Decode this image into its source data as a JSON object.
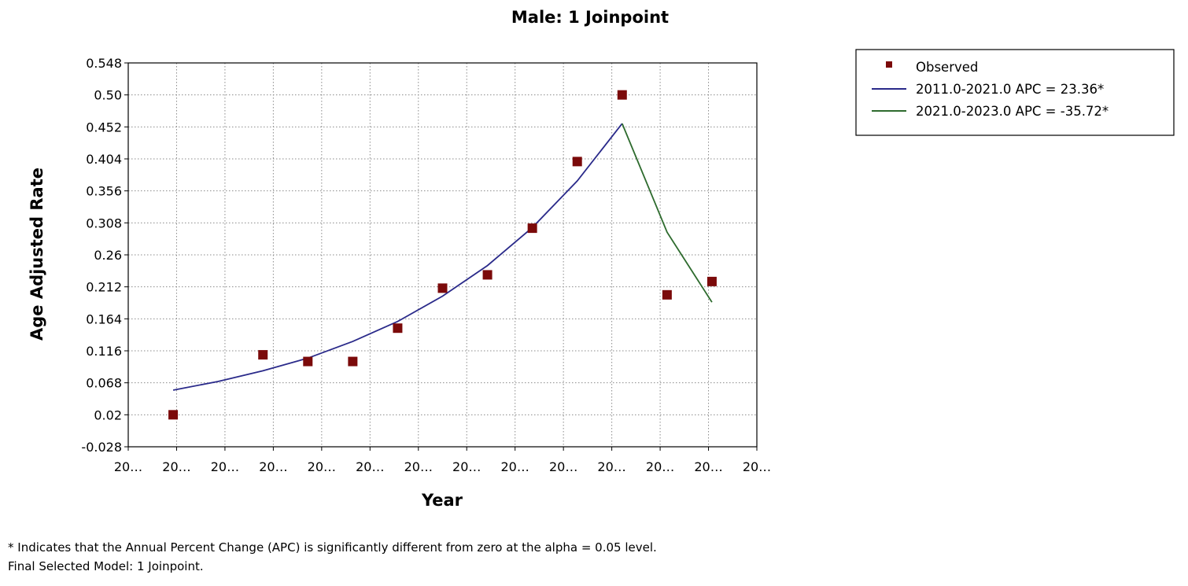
{
  "chart_data": {
    "type": "line",
    "title": "Male: 1 Joinpoint",
    "xlabel": "Year",
    "ylabel": "Age Adjusted Rate",
    "x_tick_labels": [
      "20…",
      "20…",
      "20…",
      "20…",
      "20…",
      "20…",
      "20…",
      "20…",
      "20…",
      "20…",
      "20…",
      "20…",
      "20…",
      "20…"
    ],
    "y_ticks": [
      "0.548",
      "0.50",
      "0.452",
      "0.404",
      "0.356",
      "0.308",
      "0.26",
      "0.212",
      "0.164",
      "0.116",
      "0.068",
      "0.02",
      "-0.028"
    ],
    "xlim": [
      2010,
      2024
    ],
    "ylim": [
      -0.028,
      0.548
    ],
    "grid": true,
    "legend_position": "top-right",
    "series": [
      {
        "name": "Observed",
        "kind": "scatter",
        "color": "#7b0a0a",
        "x": [
          2011,
          2013,
          2014,
          2015,
          2016,
          2017,
          2018,
          2019,
          2020,
          2021,
          2022,
          2023
        ],
        "y": [
          0.02,
          0.11,
          0.1,
          0.1,
          0.15,
          0.21,
          0.23,
          0.3,
          0.4,
          0.5,
          0.2,
          0.22
        ]
      },
      {
        "name": "2011.0-2021.0 APC  =  23.36*",
        "kind": "line",
        "color": "#2a2a8a",
        "x": [
          2011,
          2012,
          2013,
          2014,
          2015,
          2016,
          2017,
          2018,
          2019,
          2020,
          2021
        ],
        "y": [
          0.057,
          0.07,
          0.086,
          0.105,
          0.13,
          0.16,
          0.198,
          0.244,
          0.301,
          0.371,
          0.457
        ]
      },
      {
        "name": "2021.0-2023.0 APC  =  -35.72*",
        "kind": "line",
        "color": "#2e6b2e",
        "x": [
          2021,
          2022,
          2023
        ],
        "y": [
          0.457,
          0.294,
          0.189
        ]
      }
    ]
  },
  "footnotes": {
    "line1": "* Indicates that the Annual Percent Change (APC) is significantly different from zero at the alpha = 0.05 level.",
    "line2": "Final Selected Model: 1 Joinpoint."
  }
}
